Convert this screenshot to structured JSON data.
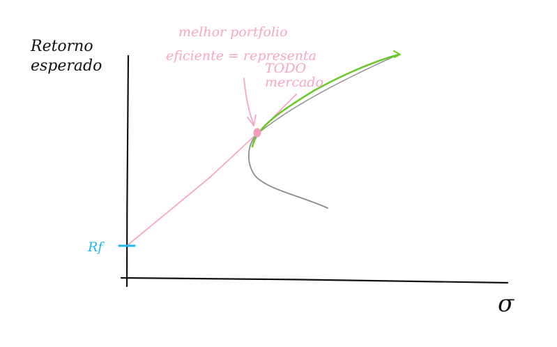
{
  "title": "",
  "labels": {
    "y_axis_line1": "Retorno",
    "y_axis_line2": "esperado",
    "x_axis": "σ",
    "rf": "Rf",
    "annotation_line1": "melhor portfolio",
    "annotation_line2": "eficiente = representa",
    "annotation_line3": "TODO",
    "annotation_line4": "mercado"
  },
  "colors": {
    "axes": "#111111",
    "capital_market_line": "#f4a6c4",
    "efficient_frontier": "#6cc829",
    "min_variance_frontier": "#8a8a8a",
    "rf_marker": "#21b6e8",
    "market_portfolio_point": "#ee9cc0"
  }
}
